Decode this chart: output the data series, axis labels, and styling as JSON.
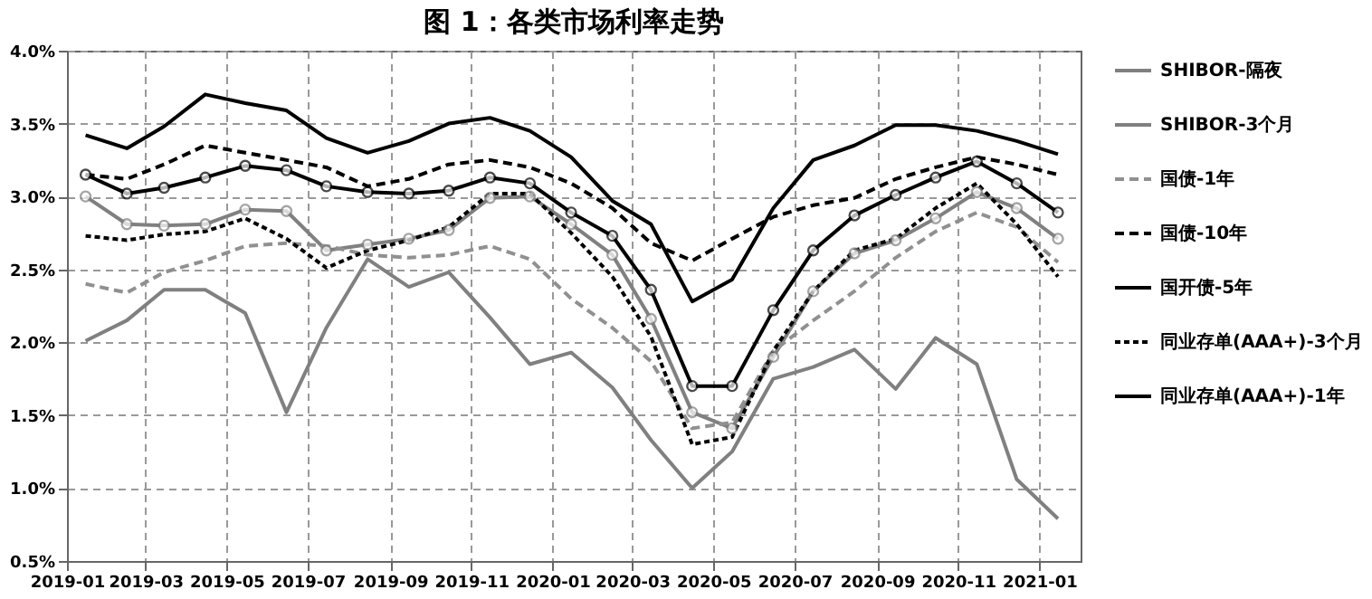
{
  "chart_data": {
    "type": "line",
    "title": "图 1：各类市场利率走势",
    "x": [
      "2019-01-15",
      "2019-02-15",
      "2019-03-15",
      "2019-04-15",
      "2019-05-15",
      "2019-06-15",
      "2019-07-15",
      "2019-08-15",
      "2019-09-15",
      "2019-10-15",
      "2019-11-15",
      "2019-12-15",
      "2020-01-15",
      "2020-02-15",
      "2020-03-15",
      "2020-04-15",
      "2020-05-15",
      "2020-06-15",
      "2020-07-15",
      "2020-08-15",
      "2020-09-15",
      "2020-10-15",
      "2020-11-15",
      "2020-12-15",
      "2021-01-15"
    ],
    "xlim": [
      "2019-01-01",
      "2021-02-01"
    ],
    "xticks": [
      "2019-01",
      "2019-03",
      "2019-05",
      "2019-07",
      "2019-09",
      "2019-11",
      "2020-01",
      "2020-03",
      "2020-05",
      "2020-07",
      "2020-09",
      "2020-11",
      "2021-01"
    ],
    "ylim": [
      0.5,
      4.0
    ],
    "yticks": [
      {
        "value": 0.5,
        "label": "0.5%"
      },
      {
        "value": 1.0,
        "label": "1.0%"
      },
      {
        "value": 1.5,
        "label": "1.5%"
      },
      {
        "value": 2.0,
        "label": "2.0%"
      },
      {
        "value": 2.5,
        "label": "2.5%"
      },
      {
        "value": 3.0,
        "label": "3.0%"
      },
      {
        "value": 3.5,
        "label": "3.5%"
      },
      {
        "value": 4.0,
        "label": "4.0%"
      }
    ],
    "grid": true,
    "legend": "right",
    "series": [
      {
        "name": "SHIBOR-隔夜",
        "color": "#808080",
        "line_style": "solid",
        "marker": "none",
        "values": [
          2.01,
          2.15,
          2.36,
          2.36,
          2.2,
          1.52,
          2.1,
          2.57,
          2.38,
          2.48,
          2.17,
          1.85,
          1.93,
          1.69,
          1.33,
          1.0,
          1.25,
          1.75,
          1.83,
          1.95,
          1.68,
          2.03,
          1.85,
          1.06,
          0.79
        ]
      },
      {
        "name": "SHIBOR-3个月",
        "color": "#808080",
        "line_style": "solid",
        "marker": "circle",
        "values": [
          3.0,
          2.81,
          2.8,
          2.81,
          2.91,
          2.9,
          2.63,
          2.67,
          2.71,
          2.77,
          2.99,
          3.0,
          2.81,
          2.6,
          2.16,
          1.52,
          1.41,
          1.9,
          2.35,
          2.61,
          2.7,
          2.85,
          3.03,
          2.92,
          2.71
        ]
      },
      {
        "name": "国债-1年",
        "color": "#909090",
        "line_style": "dashed",
        "marker": "none",
        "values": [
          2.4,
          2.34,
          2.48,
          2.56,
          2.66,
          2.68,
          2.66,
          2.6,
          2.58,
          2.6,
          2.66,
          2.57,
          2.3,
          2.1,
          1.87,
          1.41,
          1.45,
          1.94,
          2.15,
          2.35,
          2.58,
          2.76,
          2.89,
          2.79,
          2.55
        ]
      },
      {
        "name": "国债-10年",
        "color": "#000000",
        "line_style": "dashed",
        "marker": "none",
        "values": [
          3.15,
          3.12,
          3.22,
          3.35,
          3.3,
          3.25,
          3.2,
          3.07,
          3.12,
          3.22,
          3.25,
          3.2,
          3.09,
          2.92,
          2.68,
          2.56,
          2.71,
          2.86,
          2.94,
          2.99,
          3.12,
          3.2,
          3.27,
          3.22,
          3.15
        ]
      },
      {
        "name": "国开债-5年",
        "color": "#000000",
        "line_style": "solid",
        "marker": "none",
        "values": [
          3.42,
          3.33,
          3.48,
          3.7,
          3.64,
          3.59,
          3.4,
          3.3,
          3.38,
          3.5,
          3.54,
          3.45,
          3.27,
          2.97,
          2.81,
          2.28,
          2.43,
          2.92,
          3.25,
          3.35,
          3.49,
          3.49,
          3.45,
          3.38,
          3.29
        ]
      },
      {
        "name": "同业存单(AAA+)-3个月",
        "color": "#000000",
        "line_style": "dotted",
        "marker": "none",
        "values": [
          2.73,
          2.7,
          2.74,
          2.76,
          2.85,
          2.71,
          2.51,
          2.63,
          2.7,
          2.79,
          3.02,
          3.02,
          2.75,
          2.45,
          2.04,
          1.3,
          1.35,
          1.94,
          2.35,
          2.63,
          2.71,
          2.92,
          3.09,
          2.81,
          2.45
        ]
      },
      {
        "name": "同业存单(AAA+)-1年",
        "color": "#000000",
        "line_style": "solid",
        "marker": "circle",
        "values": [
          3.15,
          3.02,
          3.06,
          3.13,
          3.21,
          3.18,
          3.07,
          3.03,
          3.02,
          3.04,
          3.13,
          3.09,
          2.89,
          2.73,
          2.36,
          1.7,
          1.7,
          2.22,
          2.63,
          2.87,
          3.01,
          3.13,
          3.24,
          3.09,
          2.89
        ]
      }
    ]
  }
}
